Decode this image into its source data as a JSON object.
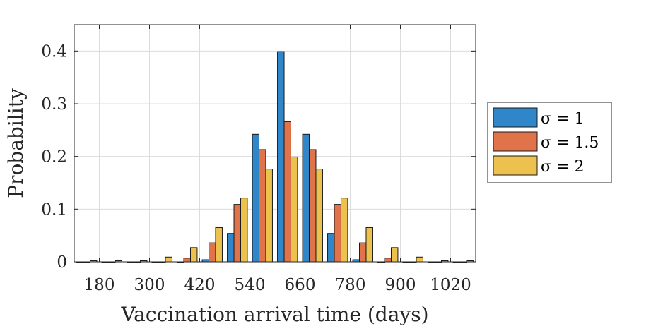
{
  "chart_data": {
    "type": "bar",
    "title": "",
    "xlabel": "Vaccination arrival time (days)",
    "ylabel": "Probability",
    "categories": [
      150,
      210,
      270,
      330,
      390,
      450,
      510,
      570,
      630,
      690,
      750,
      810,
      870,
      930,
      990,
      1050
    ],
    "x_tick_labels": [
      "180",
      "300",
      "420",
      "540",
      "660",
      "780",
      "900",
      "1020"
    ],
    "x_ticks": [
      180,
      300,
      420,
      540,
      660,
      780,
      900,
      1020
    ],
    "xlim": [
      120,
      1080
    ],
    "ylim": [
      0,
      0.45
    ],
    "y_ticks": [
      0,
      0.1,
      0.2,
      0.3,
      0.4
    ],
    "y_tick_labels": [
      "0",
      "0.1",
      "0.2",
      "0.3",
      "0.4"
    ],
    "grid": true,
    "legend_position": "right-outside",
    "series": [
      {
        "name": "σ = 1",
        "color": "#2f86c8",
        "values": [
          0.0,
          0.0,
          0.0,
          0.0,
          0.0,
          0.004,
          0.054,
          0.242,
          0.399,
          0.242,
          0.054,
          0.004,
          0.0,
          0.0,
          0.0,
          0.0
        ]
      },
      {
        "name": "σ = 1.5",
        "color": "#e1734a",
        "values": [
          0.0,
          0.0,
          0.0,
          0.0,
          0.007,
          0.036,
          0.109,
          0.213,
          0.266,
          0.213,
          0.109,
          0.036,
          0.007,
          0.0,
          0.0,
          0.0
        ]
      },
      {
        "name": "σ = 2",
        "color": "#edc14d",
        "values": [
          0.002,
          0.002,
          0.002,
          0.009,
          0.027,
          0.065,
          0.121,
          0.176,
          0.199,
          0.176,
          0.121,
          0.065,
          0.027,
          0.009,
          0.002,
          0.002
        ]
      }
    ]
  }
}
